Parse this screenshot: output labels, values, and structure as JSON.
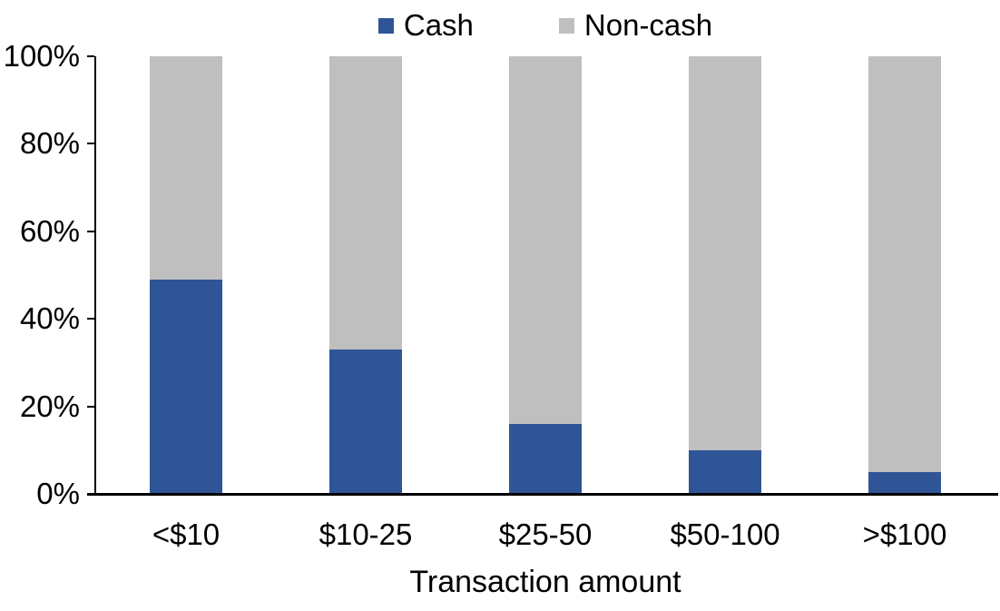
{
  "chart_data": {
    "type": "bar",
    "variant": "stacked-100-percent",
    "title": "",
    "xlabel": "Transaction amount",
    "ylabel": "",
    "categories": [
      "<$10",
      "$10-25",
      "$25-50",
      "$50-100",
      ">$100"
    ],
    "series": [
      {
        "name": "Cash",
        "color": "#2F5597",
        "values": [
          49,
          33,
          16,
          10,
          5
        ]
      },
      {
        "name": "Non-cash",
        "color": "#BFBFBF",
        "values": [
          51,
          67,
          84,
          90,
          95
        ]
      }
    ],
    "ylim": [
      0,
      100
    ],
    "yticks": [
      "0%",
      "20%",
      "40%",
      "60%",
      "80%",
      "100%"
    ],
    "unit": "percent",
    "grid": false,
    "legend_position": "top-center",
    "axis_color": "#000000",
    "text_color": "#000000",
    "background_color": "#FFFFFF"
  }
}
